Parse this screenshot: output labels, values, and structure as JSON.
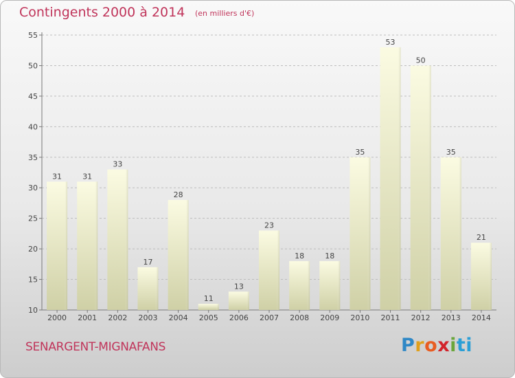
{
  "header": {
    "title": "Contingents 2000 à 2014",
    "subtitle": "(en milliers d'€)"
  },
  "footer": {
    "commune": "SENARGENT-MIGNAFANS",
    "brand_letters": [
      "P",
      "r",
      "o",
      "x",
      "i",
      "ti"
    ]
  },
  "chart_data": {
    "type": "bar",
    "title": "Contingents 2000 à 2014",
    "subtitle": "(en milliers d'€)",
    "xlabel": "",
    "ylabel": "",
    "categories": [
      "2000",
      "2001",
      "2002",
      "2003",
      "2004",
      "2005",
      "2006",
      "2007",
      "2008",
      "2009",
      "2010",
      "2011",
      "2012",
      "2013",
      "2014"
    ],
    "values": [
      31,
      31,
      33,
      17,
      28,
      11,
      13,
      23,
      18,
      18,
      35,
      53,
      50,
      35,
      21
    ],
    "ylim": [
      10,
      55
    ],
    "yticks": [
      10,
      15,
      20,
      25,
      30,
      35,
      40,
      45,
      50,
      55
    ],
    "grid": "horizontal dashed",
    "bar_color": "#f6f7cf",
    "bar_color_bottom": "#cfd0a6"
  }
}
